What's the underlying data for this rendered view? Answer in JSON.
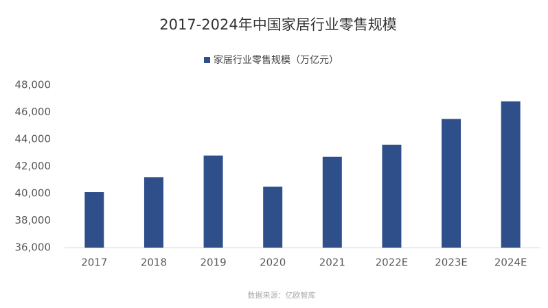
{
  "chart_data": {
    "type": "bar",
    "title": "2017-2024年中国家居行业零售规模",
    "categories": [
      "2017",
      "2018",
      "2019",
      "2020",
      "2021",
      "2022E",
      "2023E",
      "2024E"
    ],
    "series": [
      {
        "name": "家居行业零售规模（万亿元）",
        "color": "#2f4f8a",
        "values": [
          40100,
          41200,
          42800,
          40500,
          42700,
          43600,
          45500,
          46800
        ]
      }
    ],
    "ylim": [
      36000,
      48000
    ],
    "yticks": [
      {
        "value": 36000,
        "label": "36,000"
      },
      {
        "value": 38000,
        "label": "38,000"
      },
      {
        "value": 40000,
        "label": "40,000"
      },
      {
        "value": 42000,
        "label": "42,000"
      },
      {
        "value": 44000,
        "label": "44,000"
      },
      {
        "value": 46000,
        "label": "46,000"
      },
      {
        "value": 48000,
        "label": "48,000"
      }
    ],
    "legend": "top",
    "source": "数据来源：亿欧智库"
  }
}
